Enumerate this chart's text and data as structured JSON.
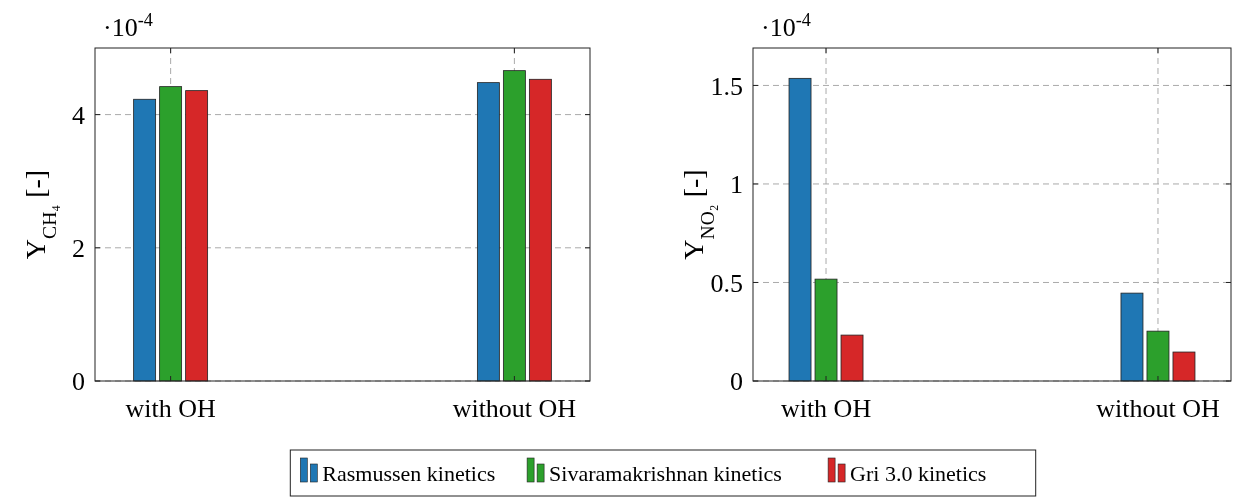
{
  "chart_data": [
    {
      "type": "bar",
      "categories": [
        "with OH",
        "without OH"
      ],
      "ylabel": "Y$_{CH₄}$ [-]",
      "annotations": [
        "·10$^{-4}$"
      ],
      "ylim": [
        0,
        5
      ],
      "yticks": [
        0,
        2,
        4
      ],
      "grid": true,
      "series": [
        {
          "color": "#1f77b4",
          "values": [
            4.23,
            4.48
          ]
        },
        {
          "color": "#2ca02c",
          "values": [
            4.42,
            4.66
          ]
        },
        {
          "color": "#d62728",
          "values": [
            4.36,
            4.53
          ]
        }
      ]
    },
    {
      "type": "bar",
      "categories": [
        "with OH",
        "without OH"
      ],
      "ylabel": "Y$_{NO₂}$ [-]",
      "annotations": [
        "·10$^{-4}$"
      ],
      "ylim": [
        0,
        1.69
      ],
      "yticks": [
        0,
        0.5,
        1,
        1.5
      ],
      "grid": true,
      "legend": "bottom",
      "series": [
        {
          "name": "Rasmussen kinetics",
          "color": "#1f77b4",
          "values": [
            1.536,
            0.446
          ]
        },
        {
          "name": "Sivaramakrishnan kinetics",
          "color": "#2ca02c",
          "values": [
            0.517,
            0.253
          ]
        },
        {
          "name": "Gri 3.0 kinetics",
          "color": "#d62728",
          "values": [
            0.233,
            0.147
          ]
        }
      ]
    }
  ]
}
